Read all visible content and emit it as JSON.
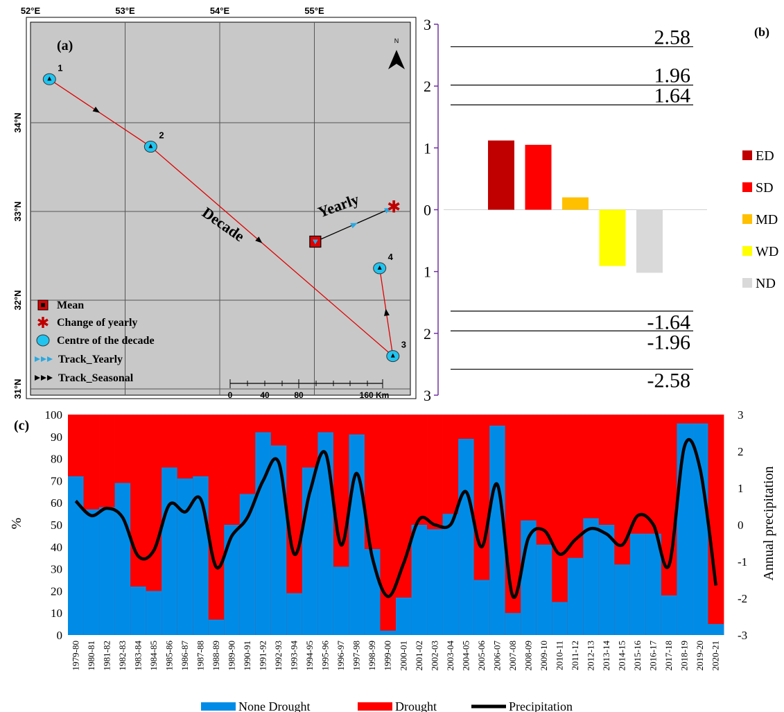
{
  "panel_a": {
    "label": "(a)",
    "lon_labels": [
      "52°E",
      "53°E",
      "54°E",
      "55°E"
    ],
    "lat_labels": [
      "34°N",
      "33°N",
      "32°N",
      "31°N"
    ],
    "north": "N",
    "decade_points": [
      {
        "id": "1",
        "lon": 52.2,
        "lat": 34.49
      },
      {
        "id": "2",
        "lon": 53.27,
        "lat": 33.73
      },
      {
        "id": "3",
        "lon": 55.83,
        "lat": 31.37
      },
      {
        "id": "4",
        "lon": 55.69,
        "lat": 32.36
      }
    ],
    "mean": {
      "lon": 55.01,
      "lat": 32.66
    },
    "yearly_change": {
      "lon": 55.84,
      "lat": 33.05
    },
    "track_decade_label": "Decade",
    "track_yearly_label": "Yearly",
    "legend": [
      "Mean",
      "Change of yearly",
      "Centre of the decade",
      "Track_Yearly",
      "Track_Seasonal"
    ],
    "scale_labels": [
      "0",
      "40",
      "80",
      "160 Km"
    ],
    "colors": {
      "map_bg": "#c8c8c8",
      "track": "#e00000",
      "centre": "#21c4ef",
      "mean": "#e00000",
      "yearly_arrow": "#2aa8e0"
    }
  },
  "panel_b": {
    "label": "(b)",
    "ticks": [
      "3",
      "2",
      "1",
      "0",
      "1",
      "2",
      "3"
    ],
    "thresholds": [
      {
        "value": 2.58,
        "label": "2.58"
      },
      {
        "value": 1.96,
        "label": "1.96"
      },
      {
        "value": 1.64,
        "label": "1.64"
      },
      {
        "value": -1.64,
        "label": "-1.64"
      },
      {
        "value": -1.96,
        "label": "-1.96"
      },
      {
        "value": -2.58,
        "label": "-2.58"
      }
    ],
    "bars": [
      {
        "name": "ED",
        "value": 1.12,
        "color": "#c00000"
      },
      {
        "name": "SD",
        "value": 1.05,
        "color": "#ff0000"
      },
      {
        "name": "MD",
        "value": 0.2,
        "color": "#ffc000"
      },
      {
        "name": "WD",
        "value": -0.91,
        "color": "#ffff00"
      },
      {
        "name": "ND",
        "value": -1.02,
        "color": "#d9d9d9"
      }
    ],
    "axis_color": "#7030a0"
  },
  "panel_c": {
    "label": "(c)",
    "ylabel_left": "%",
    "ylabel_right": "Annual precipitation",
    "left_ticks": [
      "0",
      "10",
      "20",
      "30",
      "40",
      "50",
      "60",
      "70",
      "80",
      "90",
      "100"
    ],
    "right_ticks": [
      "-3",
      "-2",
      "-1",
      "0",
      "1",
      "2",
      "3"
    ],
    "legend": [
      "None  Drought",
      "Drought",
      "Precipitation"
    ],
    "colors": {
      "none_drought": "#008ce6",
      "drought": "#ff0000",
      "precip": "#000000"
    }
  },
  "chart_data": [
    {
      "type": "bar",
      "title": "",
      "categories": [
        "ED",
        "SD",
        "MD",
        "WD",
        "ND"
      ],
      "values": [
        1.12,
        1.05,
        0.2,
        -0.91,
        -1.02
      ],
      "ylim": [
        -3,
        3
      ],
      "reference_lines": [
        2.58,
        1.96,
        1.64,
        -1.64,
        -1.96,
        -2.58
      ]
    },
    {
      "type": "bar",
      "stacked": true,
      "categories": [
        "1979-80",
        "1980-81",
        "1981-82",
        "1982-83",
        "1983-84",
        "1984-85",
        "1985-86",
        "1986-87",
        "1987-88",
        "1988-89",
        "1989-90",
        "1990-91",
        "1991-92",
        "1992-93",
        "1993-94",
        "1994-95",
        "1995-96",
        "1996-97",
        "1997-98",
        "1998-99",
        "1999-00",
        "2000-01",
        "2001-02",
        "2002-03",
        "2003-04",
        "2004-05",
        "2005-06",
        "2006-07",
        "2007-08",
        "2008-09",
        "2009-10",
        "2010-11",
        "2011-12",
        "2012-13",
        "2013-14",
        "2014-15",
        "2015-16",
        "2016-17",
        "2017-18",
        "2018-19",
        "2019-20",
        "2020-21"
      ],
      "series": [
        {
          "name": "None  Drought",
          "values": [
            72,
            57,
            58,
            69,
            22,
            20,
            76,
            71,
            72,
            7,
            50,
            64,
            92,
            86,
            19,
            76,
            92,
            31,
            91,
            39,
            2,
            17,
            50,
            48,
            55,
            89,
            25,
            95,
            10,
            52,
            41,
            15,
            35,
            53,
            50,
            32,
            46,
            46,
            18,
            96,
            96,
            5
          ]
        },
        {
          "name": "Drought",
          "values": [
            28,
            43,
            42,
            31,
            78,
            80,
            24,
            29,
            28,
            93,
            50,
            36,
            8,
            14,
            81,
            24,
            8,
            69,
            9,
            61,
            98,
            83,
            50,
            52,
            45,
            11,
            75,
            5,
            90,
            48,
            59,
            85,
            65,
            47,
            50,
            68,
            54,
            54,
            82,
            4,
            4,
            95
          ]
        }
      ],
      "ylabel": "%",
      "ylim": [
        0,
        100
      ]
    },
    {
      "type": "line",
      "series": [
        {
          "name": "Precipitation",
          "values": [
            0.65,
            0.25,
            0.45,
            0.2,
            -0.85,
            -0.7,
            0.55,
            0.35,
            0.7,
            -1.15,
            -0.3,
            0.2,
            1.2,
            1.7,
            -0.8,
            0.9,
            1.95,
            -0.55,
            1.4,
            -0.9,
            -1.95,
            -1.05,
            0.15,
            0,
            0,
            0.9,
            -0.6,
            1.1,
            -1.95,
            -0.35,
            -0.15,
            -0.8,
            -0.4,
            -0.1,
            -0.25,
            -0.55,
            0.25,
            0,
            -1.1,
            2.15,
            1.5,
            -1.65
          ]
        }
      ],
      "ylabel": "Annual precipitation",
      "ylim": [
        -3,
        3
      ]
    }
  ]
}
